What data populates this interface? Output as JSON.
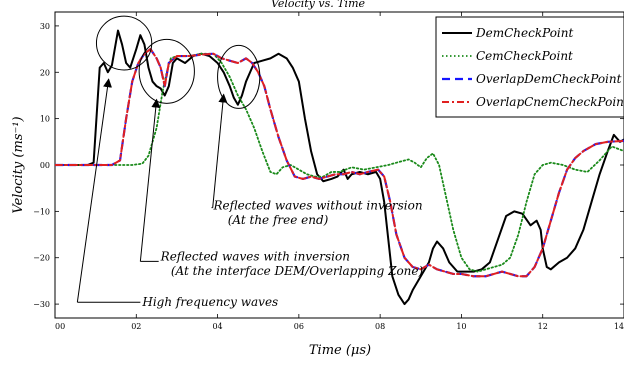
{
  "chart_data": {
    "type": "line",
    "title": "Velocity vs. Time",
    "xlabel": "Time (μs)",
    "ylabel": "Velocity (ms⁻¹)",
    "xlim": [
      0,
      14
    ],
    "ylim": [
      -33,
      33
    ],
    "x_ticks": [
      0,
      2,
      4,
      6,
      8,
      10,
      12,
      14
    ],
    "x_tick_labels": [
      "00",
      "02",
      "04",
      "06",
      "08",
      "10",
      "12",
      "14"
    ],
    "y_ticks": [
      -30,
      -20,
      -10,
      0,
      10,
      20,
      30
    ],
    "y_tick_labels": [
      "−30",
      "−20",
      "−10",
      "00",
      "10",
      "20",
      "30"
    ],
    "grid": false,
    "legend_position": "top-right",
    "series": [
      {
        "name": "DemCheckPoint",
        "color": "#000000",
        "style": "solid",
        "points": [
          [
            0,
            0
          ],
          [
            0.8,
            0
          ],
          [
            0.95,
            0.5
          ],
          [
            1.1,
            21
          ],
          [
            1.2,
            22
          ],
          [
            1.3,
            20
          ],
          [
            1.4,
            21.5
          ],
          [
            1.55,
            29
          ],
          [
            1.65,
            26
          ],
          [
            1.75,
            22
          ],
          [
            1.85,
            21
          ],
          [
            2.0,
            25
          ],
          [
            2.1,
            28
          ],
          [
            2.2,
            26
          ],
          [
            2.3,
            21
          ],
          [
            2.4,
            18
          ],
          [
            2.5,
            17
          ],
          [
            2.6,
            16.5
          ],
          [
            2.7,
            15
          ],
          [
            2.8,
            17
          ],
          [
            2.9,
            22
          ],
          [
            3.0,
            23
          ],
          [
            3.2,
            22
          ],
          [
            3.4,
            23.5
          ],
          [
            3.6,
            24
          ],
          [
            3.8,
            23.5
          ],
          [
            4.0,
            22
          ],
          [
            4.15,
            20
          ],
          [
            4.3,
            17
          ],
          [
            4.4,
            14.5
          ],
          [
            4.5,
            13
          ],
          [
            4.6,
            15
          ],
          [
            4.7,
            18
          ],
          [
            4.8,
            20
          ],
          [
            4.9,
            22
          ],
          [
            5.1,
            22.5
          ],
          [
            5.3,
            23
          ],
          [
            5.5,
            24
          ],
          [
            5.7,
            23
          ],
          [
            5.85,
            21
          ],
          [
            6.0,
            18
          ],
          [
            6.15,
            10
          ],
          [
            6.3,
            3
          ],
          [
            6.45,
            -2
          ],
          [
            6.6,
            -3.5
          ],
          [
            6.8,
            -3
          ],
          [
            6.95,
            -2.5
          ],
          [
            7.1,
            -1
          ],
          [
            7.2,
            -3
          ],
          [
            7.3,
            -2
          ],
          [
            7.5,
            -1.5
          ],
          [
            7.7,
            -2
          ],
          [
            7.9,
            -1.5
          ],
          [
            8.0,
            -3
          ],
          [
            8.1,
            -8
          ],
          [
            8.2,
            -16
          ],
          [
            8.3,
            -24
          ],
          [
            8.45,
            -28
          ],
          [
            8.6,
            -30
          ],
          [
            8.7,
            -29
          ],
          [
            8.8,
            -27
          ],
          [
            9.0,
            -24
          ],
          [
            9.2,
            -21
          ],
          [
            9.3,
            -18
          ],
          [
            9.4,
            -16.5
          ],
          [
            9.55,
            -18
          ],
          [
            9.7,
            -21
          ],
          [
            9.9,
            -23
          ],
          [
            10.1,
            -23
          ],
          [
            10.3,
            -23
          ],
          [
            10.5,
            -22.5
          ],
          [
            10.7,
            -21
          ],
          [
            10.9,
            -16
          ],
          [
            11.1,
            -11
          ],
          [
            11.3,
            -10
          ],
          [
            11.5,
            -10.5
          ],
          [
            11.7,
            -13
          ],
          [
            11.85,
            -12
          ],
          [
            11.95,
            -14
          ],
          [
            12.0,
            -18
          ],
          [
            12.1,
            -22
          ],
          [
            12.2,
            -22.5
          ],
          [
            12.4,
            -21
          ],
          [
            12.6,
            -20
          ],
          [
            12.8,
            -18
          ],
          [
            13.0,
            -14
          ],
          [
            13.2,
            -8
          ],
          [
            13.4,
            -2
          ],
          [
            13.6,
            3
          ],
          [
            13.75,
            6.5
          ],
          [
            13.9,
            5
          ],
          [
            14,
            5.5
          ]
        ]
      },
      {
        "name": "CemCheckPoint",
        "color": "#1a8a1a",
        "style": "dotted",
        "points": [
          [
            0,
            0
          ],
          [
            1.9,
            0
          ],
          [
            2.15,
            0.3
          ],
          [
            2.3,
            2
          ],
          [
            2.5,
            8
          ],
          [
            2.65,
            16
          ],
          [
            2.75,
            20
          ],
          [
            2.85,
            23
          ],
          [
            3.0,
            23.5
          ],
          [
            3.3,
            23.5
          ],
          [
            3.6,
            24
          ],
          [
            3.9,
            24
          ],
          [
            4.1,
            22
          ],
          [
            4.3,
            19
          ],
          [
            4.5,
            15
          ],
          [
            4.7,
            12
          ],
          [
            4.9,
            8
          ],
          [
            5.1,
            3
          ],
          [
            5.3,
            -1.5
          ],
          [
            5.45,
            -2
          ],
          [
            5.6,
            -0.5
          ],
          [
            5.8,
            0
          ],
          [
            6.0,
            -1
          ],
          [
            6.2,
            -2
          ],
          [
            6.4,
            -2.5
          ],
          [
            6.6,
            -2.5
          ],
          [
            6.8,
            -1.5
          ],
          [
            7.0,
            -1.5
          ],
          [
            7.3,
            -0.5
          ],
          [
            7.6,
            -1
          ],
          [
            7.9,
            -0.5
          ],
          [
            8.2,
            0
          ],
          [
            8.4,
            0.5
          ],
          [
            8.7,
            1.2
          ],
          [
            8.85,
            0.5
          ],
          [
            9.0,
            -0.5
          ],
          [
            9.15,
            1.5
          ],
          [
            9.3,
            2.5
          ],
          [
            9.45,
            0
          ],
          [
            9.6,
            -6
          ],
          [
            9.8,
            -14
          ],
          [
            10.0,
            -20
          ],
          [
            10.2,
            -22.5
          ],
          [
            10.4,
            -23
          ],
          [
            10.6,
            -22.5
          ],
          [
            10.8,
            -22
          ],
          [
            11.0,
            -21.5
          ],
          [
            11.2,
            -20
          ],
          [
            11.4,
            -15
          ],
          [
            11.6,
            -8
          ],
          [
            11.8,
            -2
          ],
          [
            12.0,
            0
          ],
          [
            12.2,
            0.5
          ],
          [
            12.5,
            0
          ],
          [
            12.8,
            -1
          ],
          [
            13.1,
            -1.5
          ],
          [
            13.4,
            1
          ],
          [
            13.7,
            4
          ],
          [
            14,
            3
          ]
        ]
      },
      {
        "name": "OverlapDemCheckPoint",
        "color": "#1515ff",
        "style": "dashed",
        "points": [
          [
            0,
            0
          ],
          [
            1.4,
            0
          ],
          [
            1.6,
            1
          ],
          [
            1.75,
            10
          ],
          [
            1.9,
            18
          ],
          [
            2.05,
            22
          ],
          [
            2.2,
            24
          ],
          [
            2.35,
            25
          ],
          [
            2.5,
            23
          ],
          [
            2.6,
            21
          ],
          [
            2.7,
            17
          ],
          [
            2.8,
            22
          ],
          [
            3.0,
            23.5
          ],
          [
            3.3,
            23.5
          ],
          [
            3.6,
            23.8
          ],
          [
            3.9,
            24
          ],
          [
            4.1,
            23
          ],
          [
            4.3,
            22.5
          ],
          [
            4.5,
            22
          ],
          [
            4.7,
            23
          ],
          [
            4.85,
            22
          ],
          [
            5.0,
            20
          ],
          [
            5.15,
            17
          ],
          [
            5.3,
            12
          ],
          [
            5.5,
            6
          ],
          [
            5.7,
            1
          ],
          [
            5.9,
            -2.5
          ],
          [
            6.1,
            -3
          ],
          [
            6.3,
            -2.5
          ],
          [
            6.5,
            -3
          ],
          [
            6.7,
            -2.5
          ],
          [
            6.9,
            -2
          ],
          [
            7.1,
            -2
          ],
          [
            7.3,
            -1.5
          ],
          [
            7.5,
            -2
          ],
          [
            7.7,
            -1.5
          ],
          [
            7.95,
            -1
          ],
          [
            8.1,
            -2.5
          ],
          [
            8.25,
            -8
          ],
          [
            8.4,
            -15
          ],
          [
            8.6,
            -20
          ],
          [
            8.8,
            -22
          ],
          [
            9.0,
            -22.5
          ],
          [
            9.2,
            -21.5
          ],
          [
            9.4,
            -22.5
          ],
          [
            9.6,
            -23
          ],
          [
            9.8,
            -23.5
          ],
          [
            10.0,
            -23.5
          ],
          [
            10.3,
            -24
          ],
          [
            10.6,
            -24
          ],
          [
            10.8,
            -23.5
          ],
          [
            11.0,
            -23
          ],
          [
            11.2,
            -23.5
          ],
          [
            11.4,
            -24
          ],
          [
            11.6,
            -24
          ],
          [
            11.8,
            -22
          ],
          [
            12.0,
            -18
          ],
          [
            12.2,
            -12
          ],
          [
            12.4,
            -6
          ],
          [
            12.6,
            -1
          ],
          [
            12.8,
            1.5
          ],
          [
            13.0,
            3
          ],
          [
            13.3,
            4.5
          ],
          [
            13.6,
            5
          ],
          [
            14,
            5.2
          ]
        ]
      },
      {
        "name": "OverlapCnemCheckPoint",
        "color": "#e02020",
        "style": "dashdot",
        "points": [
          [
            0,
            0
          ],
          [
            1.4,
            0
          ],
          [
            1.6,
            1
          ],
          [
            1.75,
            10
          ],
          [
            1.9,
            18
          ],
          [
            2.05,
            22
          ],
          [
            2.2,
            24
          ],
          [
            2.35,
            25
          ],
          [
            2.5,
            23
          ],
          [
            2.6,
            21
          ],
          [
            2.7,
            17
          ],
          [
            2.8,
            22
          ],
          [
            3.0,
            23.5
          ],
          [
            3.3,
            23.5
          ],
          [
            3.6,
            23.8
          ],
          [
            3.9,
            24
          ],
          [
            4.1,
            23
          ],
          [
            4.3,
            22.5
          ],
          [
            4.5,
            22
          ],
          [
            4.7,
            23
          ],
          [
            4.85,
            22
          ],
          [
            5.0,
            20
          ],
          [
            5.15,
            17
          ],
          [
            5.3,
            12
          ],
          [
            5.5,
            6
          ],
          [
            5.7,
            1
          ],
          [
            5.9,
            -2.5
          ],
          [
            6.1,
            -3
          ],
          [
            6.3,
            -2.5
          ],
          [
            6.5,
            -3
          ],
          [
            6.7,
            -2.5
          ],
          [
            6.9,
            -2
          ],
          [
            7.1,
            -2
          ],
          [
            7.3,
            -1.5
          ],
          [
            7.5,
            -2
          ],
          [
            7.7,
            -1.5
          ],
          [
            7.95,
            -1
          ],
          [
            8.1,
            -2.5
          ],
          [
            8.25,
            -8
          ],
          [
            8.4,
            -15
          ],
          [
            8.6,
            -20
          ],
          [
            8.8,
            -22
          ],
          [
            9.0,
            -22.5
          ],
          [
            9.2,
            -21.5
          ],
          [
            9.4,
            -22.5
          ],
          [
            9.6,
            -23
          ],
          [
            9.8,
            -23.5
          ],
          [
            10.0,
            -23.5
          ],
          [
            10.3,
            -24
          ],
          [
            10.6,
            -24
          ],
          [
            10.8,
            -23.5
          ],
          [
            11.0,
            -23
          ],
          [
            11.2,
            -23.5
          ],
          [
            11.4,
            -24
          ],
          [
            11.6,
            -24
          ],
          [
            11.8,
            -22
          ],
          [
            12.0,
            -18
          ],
          [
            12.2,
            -12
          ],
          [
            12.4,
            -6
          ],
          [
            12.6,
            -1
          ],
          [
            12.8,
            1.5
          ],
          [
            13.0,
            3
          ],
          [
            13.3,
            4.5
          ],
          [
            13.6,
            5
          ],
          [
            14,
            5.2
          ]
        ]
      }
    ],
    "annotations": [
      {
        "name": "high-frequency",
        "text": "High frequency waves",
        "circle": {
          "x": 1.7,
          "y": 26.3,
          "rx": 0.68,
          "ry": 5.8
        },
        "arrow_from": [
          0.55,
          -29.6
        ],
        "arrow_to": [
          1.32,
          18.5
        ],
        "text_at": [
          2.15,
          -29.6
        ]
      },
      {
        "name": "inversion",
        "text": "Reflected waves with inversion",
        "subtext": "(At the interface DEM/Overlapping Zone)",
        "circle": {
          "x": 2.75,
          "y": 20.2,
          "rx": 0.68,
          "ry": 6.9
        },
        "arrow_from": [
          2.1,
          -20.8
        ],
        "arrow_to": [
          2.5,
          14.1
        ],
        "text_at": [
          2.6,
          -19.7
        ],
        "subtext_at": [
          2.85,
          -22.9
        ]
      },
      {
        "name": "no-inversion",
        "text": "Reflected waves without inversion",
        "subtext": "(At the free end)",
        "circle": {
          "x": 4.52,
          "y": 19.0,
          "rx": 0.52,
          "ry": 6.8
        },
        "arrow_from": [
          3.88,
          -9.2
        ],
        "arrow_to": [
          4.15,
          15.2
        ],
        "text_at": [
          3.9,
          -8.7
        ],
        "subtext_at": [
          4.25,
          -11.9
        ]
      }
    ]
  }
}
